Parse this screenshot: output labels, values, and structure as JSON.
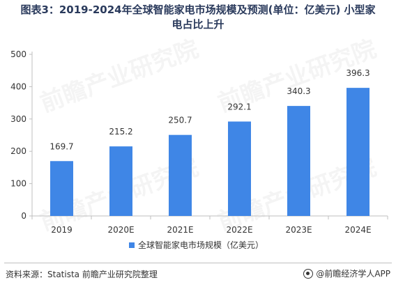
{
  "title": {
    "line1": "图表3：2019-2024年全球智能家电市场规模及预测(单位：亿美元) 小型家",
    "line2": "电占比上升"
  },
  "source": {
    "text": "资料来源：Statista 前瞻产业研究院整理",
    "brand": "@前瞻经济学人APP"
  },
  "watermark": "前瞻产业研究院",
  "colors": {
    "bar": "#3f86e6",
    "axis": "#bfbfbf",
    "grid": "#e6e6e6",
    "text": "#333333"
  },
  "chart_data": {
    "type": "bar",
    "categories": [
      "2019",
      "2020E",
      "2021E",
      "2022E",
      "2023E",
      "2024E"
    ],
    "series": [
      {
        "name": "全球智能家电市场规模（亿美元）",
        "values": [
          169.7,
          215.2,
          250.7,
          292.1,
          340.3,
          396.3
        ]
      }
    ],
    "data_labels": [
      "169.7",
      "215.2",
      "250.7",
      "292.1",
      "340.3",
      "396.3"
    ],
    "ylim": [
      0,
      500
    ],
    "yticks": [
      0,
      100,
      200,
      300,
      400,
      500
    ],
    "grid": false,
    "legend_position": "bottom-center"
  }
}
